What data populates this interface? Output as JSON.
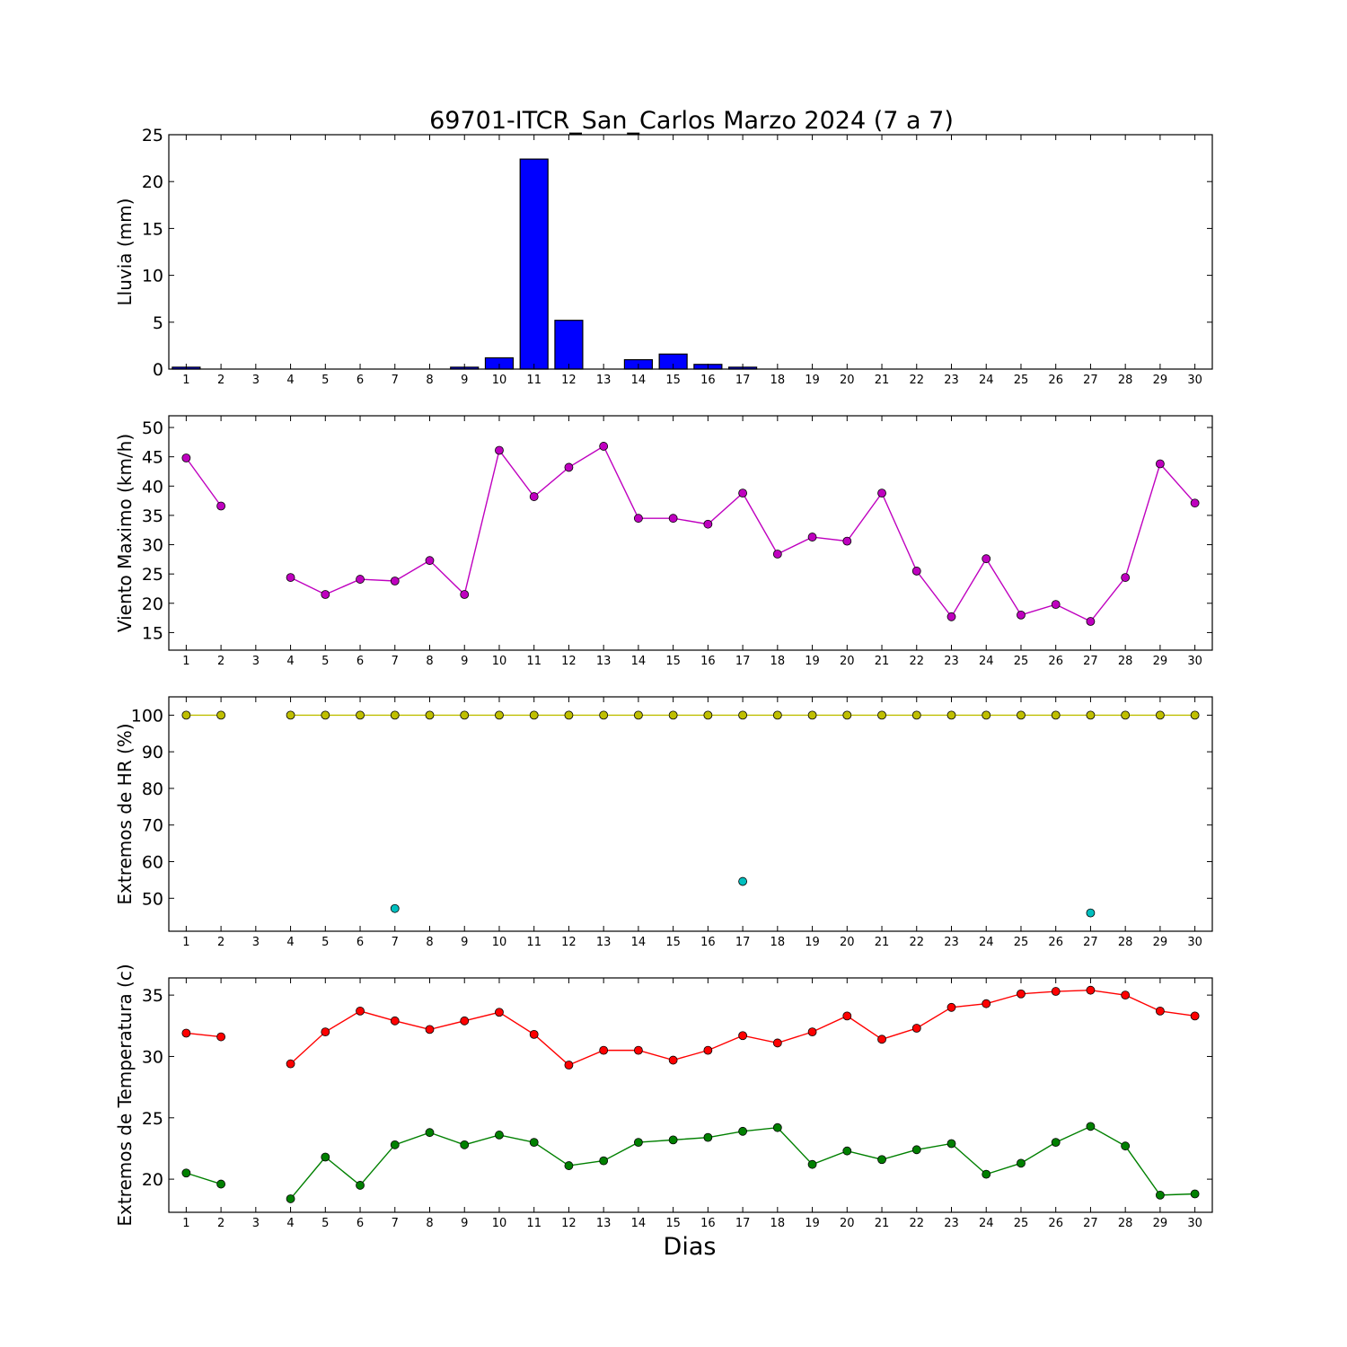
{
  "figure": {
    "title": "69701-ITCR_San_Carlos Marzo 2024  (7 a 7)",
    "xlabel": "Dias"
  },
  "chart_data": [
    {
      "type": "bar",
      "ylabel": "Lluvia (mm)",
      "ylim": [
        0,
        25
      ],
      "yticks": [
        0,
        5,
        10,
        15,
        20,
        25
      ],
      "x": [
        1,
        2,
        3,
        4,
        5,
        6,
        7,
        8,
        9,
        10,
        11,
        12,
        13,
        14,
        15,
        16,
        17,
        18,
        19,
        20,
        21,
        22,
        23,
        24,
        25,
        26,
        27,
        28,
        29,
        30
      ],
      "xticks": [
        1,
        2,
        3,
        4,
        5,
        6,
        7,
        8,
        9,
        10,
        11,
        12,
        13,
        14,
        15,
        16,
        17,
        18,
        19,
        20,
        21,
        22,
        23,
        24,
        25,
        26,
        27,
        28,
        29,
        30
      ],
      "xlim": [
        0.5,
        30.5
      ],
      "grid": false,
      "series": [
        {
          "color": "#0000ff",
          "values": [
            0.2,
            0,
            null,
            0,
            0,
            0,
            0,
            0,
            0.2,
            1.2,
            22.4,
            5.2,
            0,
            1.0,
            1.6,
            0.5,
            0.2,
            0,
            0,
            0,
            0,
            0,
            0,
            0,
            0,
            0,
            0,
            0,
            0,
            0
          ]
        }
      ]
    },
    {
      "type": "line",
      "ylabel": "Viento Maximo (km/h)",
      "ylim": [
        12,
        52
      ],
      "yticks": [
        15,
        20,
        25,
        30,
        35,
        40,
        45,
        50
      ],
      "x": [
        1,
        2,
        3,
        4,
        5,
        6,
        7,
        8,
        9,
        10,
        11,
        12,
        13,
        14,
        15,
        16,
        17,
        18,
        19,
        20,
        21,
        22,
        23,
        24,
        25,
        26,
        27,
        28,
        29,
        30
      ],
      "xticks": [
        1,
        2,
        3,
        4,
        5,
        6,
        7,
        8,
        9,
        10,
        11,
        12,
        13,
        14,
        15,
        16,
        17,
        18,
        19,
        20,
        21,
        22,
        23,
        24,
        25,
        26,
        27,
        28,
        29,
        30
      ],
      "xlim": [
        0.5,
        30.5
      ],
      "grid": false,
      "series": [
        {
          "color": "#bf00bf",
          "values": [
            44.8,
            36.6,
            null,
            24.4,
            21.5,
            24.1,
            23.8,
            27.3,
            21.5,
            46.1,
            38.2,
            43.2,
            46.8,
            34.5,
            34.5,
            33.5,
            38.8,
            28.4,
            31.3,
            30.6,
            38.8,
            25.5,
            17.7,
            27.6,
            18.0,
            19.8,
            16.9,
            24.4,
            43.8,
            37.1
          ]
        }
      ]
    },
    {
      "type": "line",
      "ylabel": "Extremos de HR (%)",
      "ylim": [
        41,
        105
      ],
      "yticks": [
        50,
        60,
        70,
        80,
        90,
        100
      ],
      "x": [
        1,
        2,
        3,
        4,
        5,
        6,
        7,
        8,
        9,
        10,
        11,
        12,
        13,
        14,
        15,
        16,
        17,
        18,
        19,
        20,
        21,
        22,
        23,
        24,
        25,
        26,
        27,
        28,
        29,
        30
      ],
      "xticks": [
        1,
        2,
        3,
        4,
        5,
        6,
        7,
        8,
        9,
        10,
        11,
        12,
        13,
        14,
        15,
        16,
        17,
        18,
        19,
        20,
        21,
        22,
        23,
        24,
        25,
        26,
        27,
        28,
        29,
        30
      ],
      "xlim": [
        0.5,
        30.5
      ],
      "grid": false,
      "series": [
        {
          "color": "#bfbf00",
          "values": [
            100,
            100,
            null,
            100,
            100,
            100,
            100,
            100,
            100,
            100,
            100,
            100,
            100,
            100,
            100,
            100,
            100,
            100,
            100,
            100,
            100,
            100,
            100,
            100,
            100,
            100,
            100,
            100,
            100,
            100
          ]
        },
        {
          "color": "#00bfbf",
          "markers_only": true,
          "values": [
            null,
            null,
            null,
            null,
            null,
            null,
            47.2,
            null,
            null,
            null,
            null,
            null,
            null,
            null,
            null,
            null,
            54.6,
            null,
            null,
            null,
            null,
            null,
            null,
            null,
            null,
            null,
            46.0,
            null,
            null,
            null
          ]
        }
      ]
    },
    {
      "type": "line",
      "ylabel": "Extremos de Temperatura (c)",
      "ylim": [
        17.3,
        36.4
      ],
      "yticks": [
        20,
        25,
        30,
        35
      ],
      "x": [
        1,
        2,
        3,
        4,
        5,
        6,
        7,
        8,
        9,
        10,
        11,
        12,
        13,
        14,
        15,
        16,
        17,
        18,
        19,
        20,
        21,
        22,
        23,
        24,
        25,
        26,
        27,
        28,
        29,
        30
      ],
      "xticks": [
        1,
        2,
        3,
        4,
        5,
        6,
        7,
        8,
        9,
        10,
        11,
        12,
        13,
        14,
        15,
        16,
        17,
        18,
        19,
        20,
        21,
        22,
        23,
        24,
        25,
        26,
        27,
        28,
        29,
        30
      ],
      "xlim": [
        0.5,
        30.5
      ],
      "grid": false,
      "series": [
        {
          "color": "#ff0000",
          "values": [
            31.9,
            31.6,
            null,
            29.4,
            32.0,
            33.7,
            32.9,
            32.2,
            32.9,
            33.6,
            31.8,
            29.3,
            30.5,
            30.5,
            29.7,
            30.5,
            31.7,
            31.1,
            32.0,
            33.3,
            31.4,
            32.3,
            34.0,
            34.3,
            35.1,
            35.3,
            35.4,
            35.0,
            33.7,
            33.3
          ]
        },
        {
          "color": "#008000",
          "values": [
            20.5,
            19.6,
            null,
            18.4,
            21.8,
            19.5,
            22.8,
            23.8,
            22.8,
            23.6,
            23.0,
            21.1,
            21.5,
            23.0,
            23.2,
            23.4,
            23.9,
            24.2,
            21.2,
            22.3,
            21.6,
            22.4,
            22.9,
            20.4,
            21.3,
            23.0,
            24.3,
            22.7,
            18.7,
            18.8
          ]
        }
      ]
    }
  ]
}
